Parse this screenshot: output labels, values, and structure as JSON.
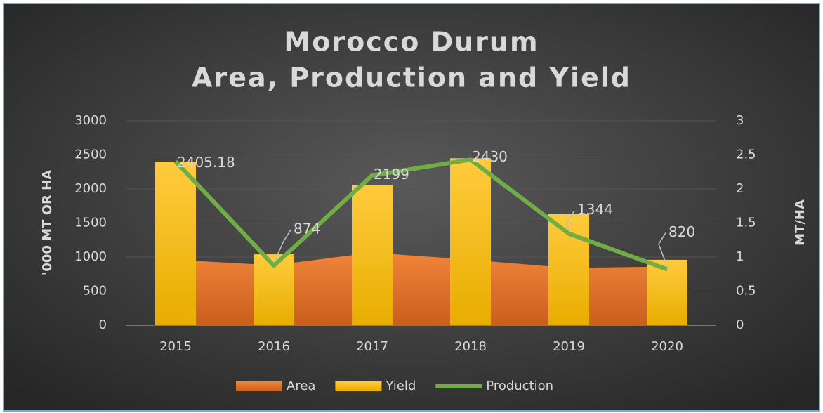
{
  "chart_data": {
    "type": "combo",
    "title": [
      "Morocco Durum",
      "Area, Production and Yield"
    ],
    "y_label": "'000 MT OR HA",
    "y2_label": "MT/HA",
    "categories": [
      "2015",
      "2016",
      "2017",
      "2018",
      "2019",
      "2020"
    ],
    "series": [
      {
        "name": "Area",
        "type": "area",
        "color": "#ed7d31",
        "values": [
          960,
          880,
          1065,
          960,
          840,
          860
        ]
      },
      {
        "name": "Yield",
        "type": "bar",
        "axis": "y2",
        "color": "#ffc000",
        "values": [
          2.4,
          1.04,
          2.06,
          2.45,
          1.63,
          0.96
        ]
      },
      {
        "name": "Production",
        "type": "line",
        "color": "#70ad47",
        "values": [
          2405.18,
          874,
          2199,
          2430,
          1344,
          820
        ]
      }
    ],
    "ylim": [
      0,
      3000
    ],
    "yticks": [
      0,
      500,
      1000,
      1500,
      2000,
      2500,
      3000
    ],
    "y2lim": [
      0,
      3
    ],
    "y2ticks": [
      0,
      0.5,
      1,
      1.5,
      2,
      2.5,
      3
    ],
    "grid": true,
    "legend": "bottom"
  }
}
